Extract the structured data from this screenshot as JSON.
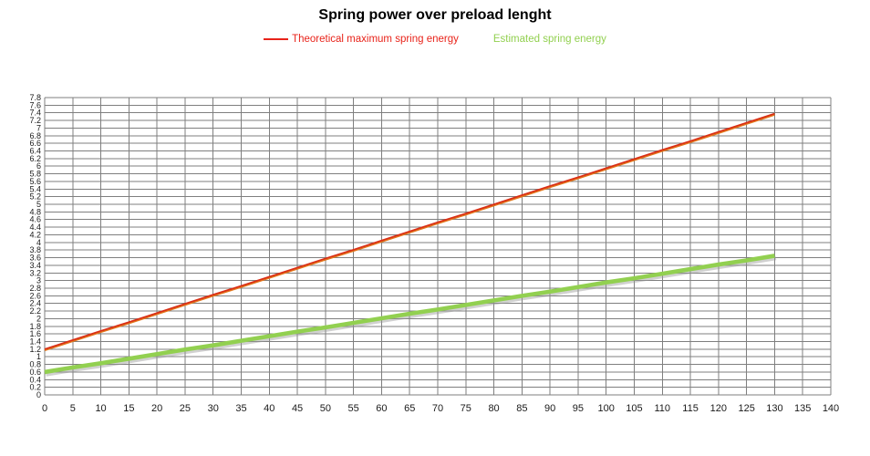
{
  "title": "Spring power over preload lenght",
  "legend": {
    "items": [
      {
        "label": "Theoretical maximum spring energy",
        "color": "#e8231a",
        "marker": true
      },
      {
        "label": "Estimated spring energy",
        "color": "#92d050",
        "marker": false
      }
    ]
  },
  "colors": {
    "grid": "#7f7f7f",
    "axis_text": "#1a1a1a",
    "background": "#ffffff"
  },
  "chart_data": {
    "type": "line",
    "title": "Spring power over preload lenght",
    "xlabel": "",
    "ylabel": "",
    "grid": true,
    "legend_position": "top",
    "xlim": [
      0,
      140
    ],
    "ylim": [
      0,
      7.8
    ],
    "x_tick_step": 5,
    "y_tick_step": 0.2,
    "x_ticks": [
      0,
      5,
      10,
      15,
      20,
      25,
      30,
      35,
      40,
      45,
      50,
      55,
      60,
      65,
      70,
      75,
      80,
      85,
      90,
      95,
      100,
      105,
      110,
      115,
      120,
      125,
      130,
      135,
      140
    ],
    "y_ticks": [
      "0",
      "0.2",
      "0.4",
      "0.6",
      "0.8",
      "1",
      "1.2",
      "1.4",
      "1.6",
      "1.8",
      "2",
      "2.2",
      "2.4",
      "2.6",
      "2.8",
      "3",
      "3.2",
      "3.4",
      "3.6",
      "3.8",
      "4",
      "4.2",
      "4.4",
      "4.6",
      "4.8",
      "5",
      "5.2",
      "5.4",
      "5.6",
      "5.8",
      "6",
      "6.2",
      "6.4",
      "6.6",
      "6.8",
      "7",
      "7.2",
      "7.4",
      "7.6",
      "7.8"
    ],
    "x": [
      0,
      5,
      10,
      15,
      20,
      25,
      30,
      35,
      40,
      45,
      50,
      55,
      60,
      65,
      70,
      75,
      80,
      85,
      90,
      95,
      100,
      105,
      110,
      115,
      120,
      125,
      130
    ],
    "series": [
      {
        "name": "Theoretical maximum spring energy",
        "color": "#d92e17",
        "under_color": "#e2761b",
        "line_width": 1.7,
        "values": [
          1.2,
          1.44,
          1.68,
          1.91,
          2.15,
          2.39,
          2.63,
          2.86,
          3.1,
          3.34,
          3.58,
          3.81,
          4.05,
          4.29,
          4.53,
          4.76,
          5.0,
          5.24,
          5.48,
          5.71,
          5.95,
          6.19,
          6.43,
          6.66,
          6.9,
          7.14,
          7.38
        ]
      },
      {
        "name": "Estimated spring energy",
        "color": "#92d050",
        "shadow_color": "#9a9a9a",
        "line_width": 4.6,
        "values": [
          0.6,
          0.72,
          0.83,
          0.95,
          1.07,
          1.19,
          1.3,
          1.42,
          1.54,
          1.66,
          1.77,
          1.89,
          2.01,
          2.13,
          2.24,
          2.36,
          2.48,
          2.6,
          2.71,
          2.83,
          2.95,
          3.06,
          3.18,
          3.3,
          3.42,
          3.53,
          3.65
        ]
      }
    ]
  }
}
